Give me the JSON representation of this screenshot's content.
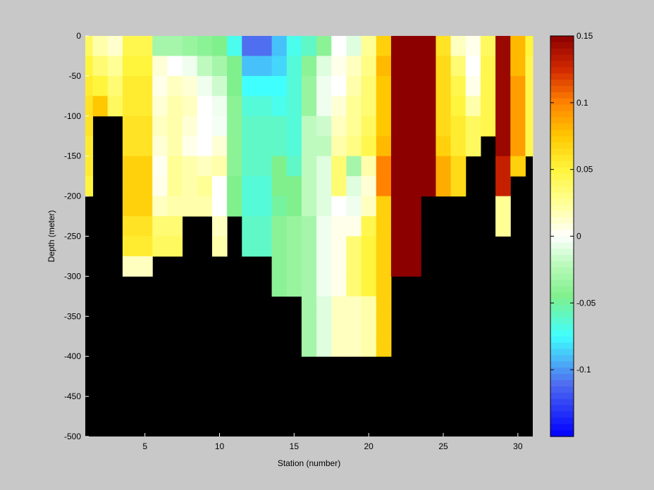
{
  "colors": {
    "figure_background": "#c8c8c8",
    "no_data": "#000000",
    "axis": "#000000",
    "colormap": "jet-white (blue-cyan-green-white-yellow-orange-dark red)"
  },
  "chart_data": {
    "type": "heatmap",
    "title": "",
    "xlabel": "Station (number)",
    "ylabel": "Depth (meter)",
    "xlim": [
      1,
      31
    ],
    "ylim": [
      -500,
      0
    ],
    "x_ticks": [
      5,
      10,
      15,
      20,
      25,
      30
    ],
    "x_tick_labels": [
      "5",
      "10",
      "15",
      "20",
      "25",
      "30"
    ],
    "y_ticks": [
      0,
      -50,
      -100,
      -150,
      -200,
      -250,
      -300,
      -350,
      -400,
      -450,
      -500
    ],
    "y_tick_labels": [
      "0",
      "-50",
      "-100",
      "-150",
      "-200",
      "-250",
      "-300",
      "-350",
      "-400",
      "-450",
      "-500"
    ],
    "colorbar": {
      "clim": [
        -0.15,
        0.15
      ],
      "ticks": [
        0.15,
        0.1,
        0.05,
        0,
        -0.05,
        -0.1
      ],
      "tick_labels": [
        "0.15",
        "0.1",
        "0.05",
        "0",
        "-0.05",
        "-0.1"
      ],
      "levels": 64
    },
    "stations": [
      1,
      2,
      3,
      4,
      5,
      6,
      7,
      8,
      9,
      10,
      11,
      12,
      13,
      14,
      15,
      16,
      17,
      18,
      19,
      20,
      21,
      22,
      23,
      24,
      25,
      26,
      27,
      28,
      29,
      30,
      31
    ],
    "depth_levels": [
      0,
      -25,
      -50,
      -75,
      -100,
      -125,
      -150,
      -175,
      -200,
      -225,
      -250,
      -275,
      -300,
      -325,
      -350,
      -375,
      -400
    ],
    "profiles": [
      {
        "station": 1,
        "values": [
          0.04,
          0.05,
          0.055,
          0.06,
          0.06,
          0.055,
          0.055,
          0.05
        ]
      },
      {
        "station": 2,
        "values": [
          0.02,
          0.035,
          0.05,
          0.075
        ]
      },
      {
        "station": 3,
        "values": [
          0.012,
          0.025,
          0.035,
          0.04
        ]
      },
      {
        "station": 4,
        "values": [
          0.045,
          0.05,
          0.055,
          0.055,
          0.06,
          0.06,
          0.07,
          0.07,
          0.07,
          0.06,
          0.055,
          0.015
        ]
      },
      {
        "station": 5,
        "values": [
          0.045,
          0.05,
          0.055,
          0.055,
          0.06,
          0.06,
          0.07,
          0.07,
          0.07,
          0.06,
          0.055,
          0.015
        ]
      },
      {
        "station": 6,
        "values": [
          -0.03,
          0.01,
          0.005,
          0.01,
          0.015,
          0.01,
          0.003,
          0.005,
          0.015,
          0.035,
          0.04
        ]
      },
      {
        "station": 7,
        "values": [
          -0.03,
          0.0,
          0.015,
          0.02,
          0.02,
          0.02,
          0.025,
          0.025,
          0.02,
          0.035,
          0.04
        ]
      },
      {
        "station": 8,
        "values": [
          -0.035,
          -0.005,
          0.01,
          0.015,
          0.01,
          0.005,
          0.02,
          0.02,
          0.02
        ]
      },
      {
        "station": 9,
        "values": [
          -0.04,
          -0.02,
          -0.005,
          0.0,
          0.0,
          0.0,
          0.015,
          0.025,
          0.02
        ]
      },
      {
        "station": 10,
        "values": [
          -0.045,
          -0.03,
          -0.015,
          -0.005,
          -0.003,
          0.01,
          0.02,
          0.0,
          0.0,
          0.015,
          0.02
        ]
      },
      {
        "station": 11,
        "values": [
          -0.07,
          -0.045,
          -0.045,
          -0.04,
          -0.04,
          -0.04,
          -0.04,
          -0.045,
          -0.045
        ]
      },
      {
        "station": 12,
        "values": [
          -0.11,
          -0.09,
          -0.075,
          -0.065,
          -0.06,
          -0.06,
          -0.06,
          -0.065,
          -0.065,
          -0.06,
          -0.06
        ]
      },
      {
        "station": 13,
        "values": [
          -0.11,
          -0.09,
          -0.075,
          -0.065,
          -0.06,
          -0.06,
          -0.06,
          -0.065,
          -0.065,
          -0.06,
          -0.06
        ]
      },
      {
        "station": 14,
        "values": [
          -0.09,
          -0.085,
          -0.075,
          -0.07,
          -0.06,
          -0.06,
          -0.045,
          -0.045,
          -0.05,
          -0.04,
          -0.04,
          -0.04,
          -0.04
        ]
      },
      {
        "station": 15,
        "values": [
          -0.07,
          -0.065,
          -0.065,
          -0.065,
          -0.065,
          -0.065,
          -0.06,
          -0.045,
          -0.045,
          -0.035,
          -0.035,
          -0.035,
          -0.035
        ]
      },
      {
        "station": 16,
        "values": [
          -0.06,
          -0.04,
          -0.035,
          -0.035,
          -0.02,
          -0.02,
          -0.02,
          -0.02,
          -0.02,
          -0.03,
          -0.03,
          -0.03,
          -0.03,
          -0.03,
          -0.03,
          -0.03
        ]
      },
      {
        "station": 17,
        "values": [
          -0.04,
          -0.01,
          -0.005,
          -0.005,
          -0.015,
          -0.02,
          -0.01,
          -0.01,
          -0.01,
          -0.005,
          -0.005,
          -0.005,
          -0.005,
          -0.01,
          -0.01,
          -0.01
        ]
      },
      {
        "station": 18,
        "values": [
          0.0,
          0.005,
          0.0,
          0.01,
          0.015,
          0.02,
          0.035,
          0.035,
          0.0,
          0.005,
          0.005,
          0.005,
          0.005,
          0.015,
          0.015,
          0.015
        ]
      },
      {
        "station": 19,
        "values": [
          -0.01,
          0.015,
          0.02,
          0.025,
          0.025,
          0.03,
          -0.03,
          -0.01,
          -0.005,
          0.005,
          0.035,
          0.035,
          0.035,
          0.015,
          0.015,
          0.015
        ]
      },
      {
        "station": 20,
        "values": [
          0.025,
          0.03,
          0.035,
          0.035,
          0.04,
          0.045,
          0.02,
          0.01,
          0.015,
          0.045,
          0.05,
          0.05,
          0.05,
          0.02,
          0.02,
          0.02
        ]
      },
      {
        "station": 21,
        "values": [
          0.07,
          0.08,
          0.075,
          0.075,
          0.075,
          0.08,
          0.1,
          0.1,
          0.07,
          0.07,
          0.07,
          0.07,
          0.07,
          0.07,
          0.07,
          0.07
        ]
      },
      {
        "station": 22,
        "values": [
          0.15,
          0.15,
          0.15,
          0.15,
          0.15,
          0.15,
          0.15,
          0.15,
          0.15,
          0.15,
          0.15,
          0.15
        ]
      },
      {
        "station": 23,
        "values": [
          0.15,
          0.15,
          0.15,
          0.15,
          0.15,
          0.15,
          0.15,
          0.15,
          0.15,
          0.15,
          0.15,
          0.15
        ]
      },
      {
        "station": 24,
        "values": [
          0.15,
          0.15,
          0.15,
          0.15,
          0.15,
          0.15,
          0.15,
          0.15
        ]
      },
      {
        "station": 25,
        "values": [
          0.06,
          0.065,
          0.065,
          0.065,
          0.065,
          0.07,
          0.085,
          0.085
        ]
      },
      {
        "station": 26,
        "values": [
          0.015,
          0.035,
          0.045,
          0.05,
          0.055,
          0.055,
          0.065,
          0.065
        ]
      },
      {
        "station": 27,
        "values": [
          0.005,
          0.0,
          0.005,
          0.02,
          0.04,
          0.04
        ]
      },
      {
        "station": 28,
        "values": [
          0.04,
          0.045,
          0.045,
          0.045,
          0.045
        ]
      },
      {
        "station": 29,
        "values": [
          0.145,
          0.145,
          0.145,
          0.145,
          0.145,
          0.145,
          0.13,
          0.13,
          0.025,
          0.025
        ]
      },
      {
        "station": 30,
        "values": [
          0.08,
          0.08,
          0.09,
          0.09,
          0.09,
          0.09,
          0.07
        ]
      },
      {
        "station": 31,
        "values": [
          0.05,
          0.045,
          0.045,
          0.045,
          0.045,
          0.045
        ]
      }
    ]
  }
}
